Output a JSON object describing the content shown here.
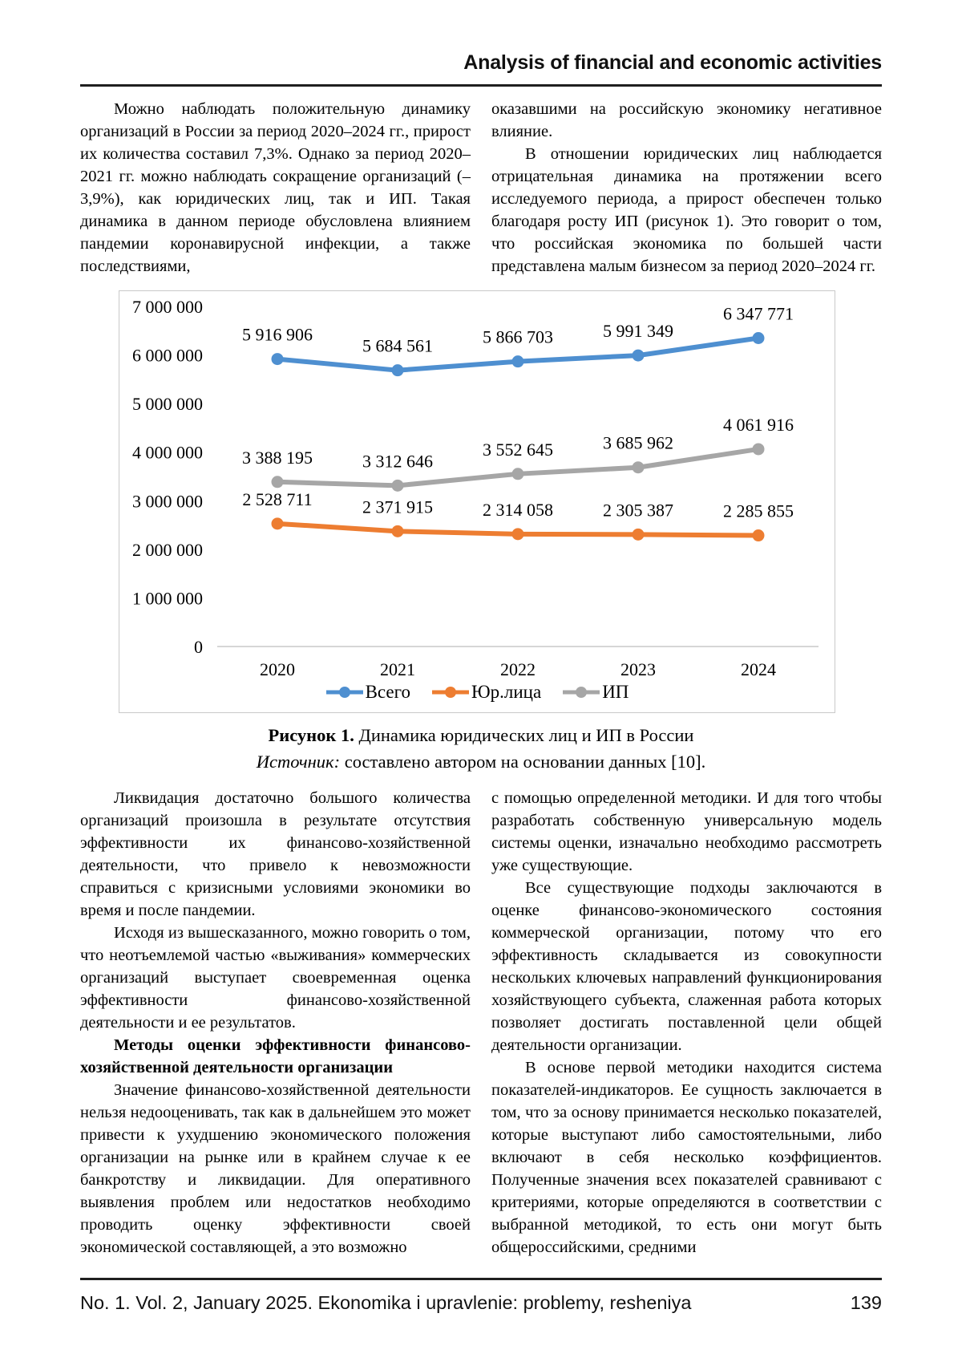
{
  "header": {
    "title": "Analysis of financial and economic activities"
  },
  "intro": {
    "left": {
      "p1": "Можно наблюдать положительную динамику организаций в России за период 2020–2024 гг., прирост их количества составил 7,3%. Однако за период 2020–2021 гг. можно наблюдать сокращение организаций (–3,9%), как юридических лиц, так и ИП. Такая динамика в данном периоде обусловлена влиянием пандемии коронавирусной инфекции, а также последствиями,"
    },
    "right": {
      "p1": "оказавшими на российскую экономику негативное влияние.",
      "p2": "В отношении юридических лиц наблюдается отрицательная динамика на протяжении всего исследуемого периода, а прирост обеспечен только благодаря росту ИП (рисунок 1). Это говорит о том, что российская экономика по большей части представлена малым бизнесом за период 2020–2024 гг."
    }
  },
  "chart_data": {
    "type": "line",
    "categories": [
      "2020",
      "2021",
      "2022",
      "2023",
      "2024"
    ],
    "series": [
      {
        "name": "Всего",
        "color": "#4E8FD0",
        "values": [
          5916906,
          5684561,
          5866703,
          5991349,
          6347771
        ]
      },
      {
        "name": "Юр.лица",
        "color": "#ED7D31",
        "values": [
          2528711,
          2371915,
          2314058,
          2305387,
          2285855
        ]
      },
      {
        "name": "ИП",
        "color": "#A6A6A6",
        "values": [
          3388195,
          3312646,
          3552645,
          3685962,
          4061916
        ]
      }
    ],
    "ylim": [
      0,
      7000000
    ],
    "ytick_step": 1000000,
    "yticks": [
      "0",
      "1 000 000",
      "2 000 000",
      "3 000 000",
      "4 000 000",
      "5 000 000",
      "6 000 000",
      "7 000 000"
    ],
    "grid": false,
    "data_labels": true,
    "legend_position": "bottom",
    "axis_line_color": "#d6d6d6"
  },
  "figure": {
    "caption_label": "Рисунок 1.",
    "caption_text": " Динамика юридических лиц и ИП в России",
    "source_label": "Источник:",
    "source_text": " составлено автором на основании данных [10]."
  },
  "body": {
    "left": {
      "p1": "Ликвидация достаточно большого количества организаций произошла в результате отсутствия эффективности их финансово-хозяйственной деятельности, что привело к невозможности справиться с кризисными условиями экономики во время и после пандемии.",
      "p2": "Исходя из вышесказанного, можно говорить о том, что неотъемлемой частью «выживания» коммерческих организаций выступает своевременная оценка эффективности финансово-хозяйственной деятельности и ее результатов.",
      "heading": "Методы оценки эффективности финансово-хозяйственной деятельности организации",
      "p3": "Значение финансово-хозяйственной деятельности нельзя недооценивать, так как в дальнейшем это может привести к ухудшению экономического положения организации на рынке или в крайнем случае к ее банкротству и ликвидации. Для оперативного выявления проблем или недостатков необходимо проводить оценку эффективности своей экономической составляющей, а это возможно"
    },
    "right": {
      "p1": "с помощью определенной методики. И для того чтобы разработать собственную универсальную модель системы оценки, изначально необходимо рассмотреть уже существующие.",
      "p2": "Все существующие подходы заключаются в оценке финансово-экономического состояния коммерческой организации, потому что его эффективность складывается из совокупности нескольких ключевых направлений функционирования хозяйствующего субъекта, слаженная работа которых позволяет достигать поставленной цели общей деятельности организации.",
      "p3": "В основе первой методики находится система показателей-индикаторов. Ее сущность заключается в том, что за основу принимается несколько показателей, которые выступают либо самостоятельными, либо включают в себя несколько коэффициентов. Полученные значения всех показателей сравнивают с критериями, которые определяются в соответствии с выбранной методикой, то есть они могут быть общероссийскими, средними"
    }
  },
  "footer": {
    "text": "No. 1. Vol. 2, January 2025. Ekonomika i upravlenie: problemy, resheniya",
    "page": "139"
  }
}
